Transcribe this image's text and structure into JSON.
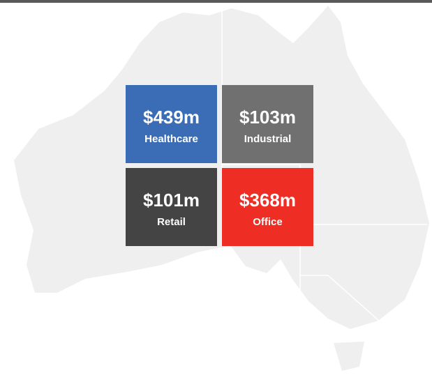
{
  "tiles": [
    {
      "value": "$439m",
      "label": "Healthcare"
    },
    {
      "value": "$103m",
      "label": "Industrial"
    },
    {
      "value": "$101m",
      "label": "Retail"
    },
    {
      "value": "$368m",
      "label": "Office"
    }
  ]
}
